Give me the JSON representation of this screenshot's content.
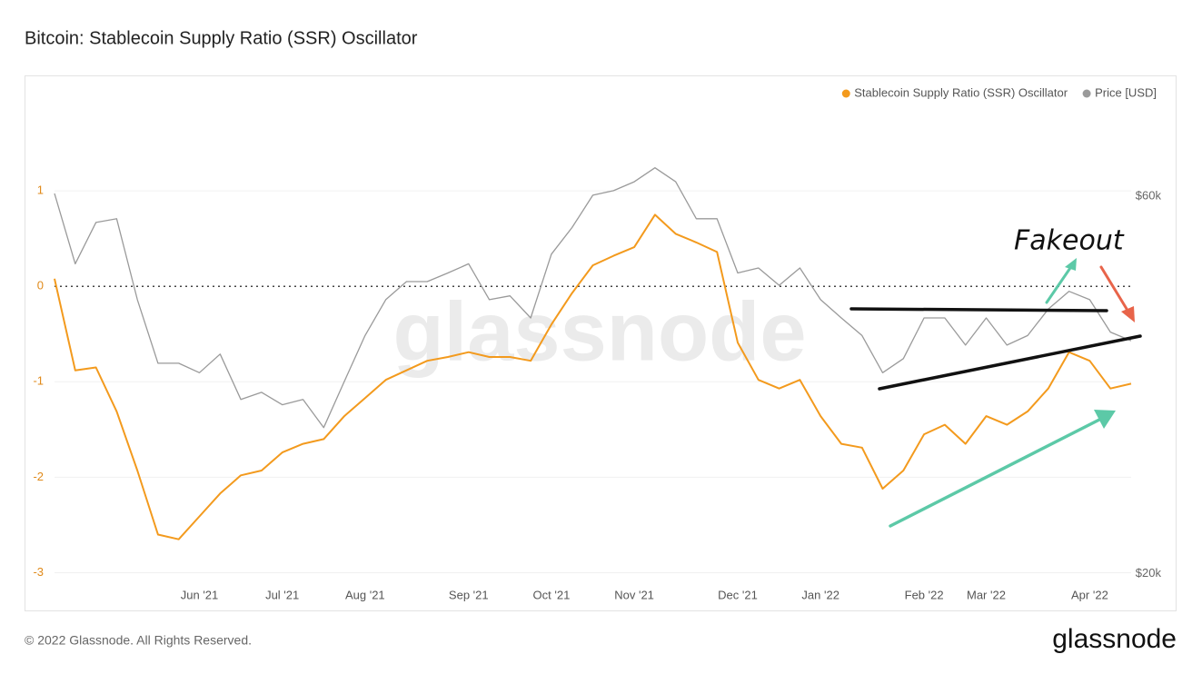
{
  "chart_data": {
    "type": "line",
    "title": "Bitcoin: Stablecoin Supply Ratio (SSR) Oscillator",
    "watermark": "glassnode",
    "annotations": [
      "Fakeout"
    ],
    "categories": [
      null,
      null,
      null,
      null,
      null,
      null,
      null,
      "Jun '21",
      null,
      null,
      null,
      "Jul '21",
      null,
      null,
      null,
      "Aug '21",
      null,
      null,
      null,
      null,
      "Sep '21",
      null,
      null,
      null,
      "Oct '21",
      null,
      null,
      null,
      "Nov '21",
      null,
      null,
      null,
      null,
      "Dec '21",
      null,
      null,
      null,
      "Jan '22",
      null,
      null,
      null,
      null,
      "Feb '22",
      null,
      null,
      "Mar '22",
      null,
      null,
      null,
      null,
      "Apr '22",
      null,
      null
    ],
    "series": [
      {
        "name": "Stablecoin Supply Ratio (SSR) Oscillator",
        "color": "#f39a1d",
        "axis": "y",
        "values": [
          0.08,
          -0.88,
          -0.85,
          -1.31,
          -1.93,
          -2.6,
          -2.65,
          -2.41,
          -2.17,
          -1.98,
          -1.93,
          -1.74,
          -1.65,
          -1.6,
          -1.36,
          -1.17,
          -0.98,
          -0.88,
          -0.78,
          -0.74,
          -0.69,
          -0.74,
          -0.74,
          -0.78,
          -0.4,
          -0.07,
          0.22,
          0.32,
          0.41,
          0.75,
          0.55,
          0.46,
          0.36,
          -0.59,
          -0.98,
          -1.07,
          -0.98,
          -1.36,
          -1.65,
          -1.69,
          -2.12,
          -1.93,
          -1.55,
          -1.45,
          -1.65,
          -1.36,
          -1.45,
          -1.31,
          -1.07,
          -0.69,
          -0.78,
          -1.07,
          -1.02
        ]
      },
      {
        "name": "Price [USD]",
        "color": "#9a9a9a",
        "axis": "y2",
        "values": [
          60500,
          49300,
          55600,
          56200,
          44400,
          36900,
          36900,
          35900,
          37900,
          33200,
          33900,
          32700,
          33200,
          30600,
          35000,
          40000,
          44400,
          46800,
          46800,
          48000,
          49300,
          44400,
          44900,
          42100,
          50700,
          54800,
          60200,
          61000,
          62600,
          65200,
          62600,
          56200,
          56200,
          48000,
          48700,
          46300,
          48700,
          44400,
          42100,
          40000,
          35900,
          37400,
          42100,
          42100,
          38900,
          42100,
          38900,
          40000,
          43200,
          45500,
          44400,
          40400,
          39400
        ]
      }
    ],
    "ylim": [
      -3.1,
      2
    ],
    "yticks": [
      -3,
      -2,
      -1,
      0,
      1
    ],
    "y2lim": [
      19500,
      80500
    ],
    "y2log": true,
    "y2ticks": [
      {
        "value": 20000,
        "label": "$20k"
      },
      {
        "value": 60000,
        "label": "$60k"
      }
    ],
    "grid": true,
    "zero_line": "dotted",
    "legend": "top-right"
  },
  "footer": {
    "copyright": "© 2022 Glassnode. All Rights Reserved.",
    "logo": "glassnode"
  }
}
